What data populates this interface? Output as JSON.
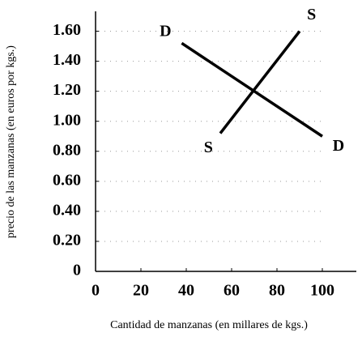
{
  "chart_data": {
    "type": "line",
    "xlabel": "Cantidad de manzanas (en millares de kgs.)",
    "ylabel": "precio de las manzanas (en euros por kgs.)",
    "series": [
      {
        "name": "D",
        "color": "#000000",
        "x": [
          38,
          100
        ],
        "values": [
          1.52,
          0.9
        ]
      },
      {
        "name": "S",
        "color": "#000000",
        "x": [
          55,
          90
        ],
        "values": [
          0.92,
          1.6
        ]
      }
    ],
    "xlim": [
      0,
      115
    ],
    "xticks": [
      0,
      20,
      40,
      60,
      80,
      100
    ],
    "ylim": [
      0,
      1.7
    ],
    "yticks": [
      0,
      {
        "value": 0.2,
        "label": "0.20"
      },
      {
        "value": 0.4,
        "label": "0.40"
      },
      {
        "value": 0.6,
        "label": "0.60"
      },
      {
        "value": 0.8,
        "label": "0.80"
      },
      {
        "value": 1.0,
        "label": "1.00"
      },
      {
        "value": 1.2,
        "label": "1.20"
      },
      {
        "value": 1.4,
        "label": "1.40"
      },
      {
        "value": 1.6,
        "label": "1.60"
      }
    ],
    "grid": true
  }
}
